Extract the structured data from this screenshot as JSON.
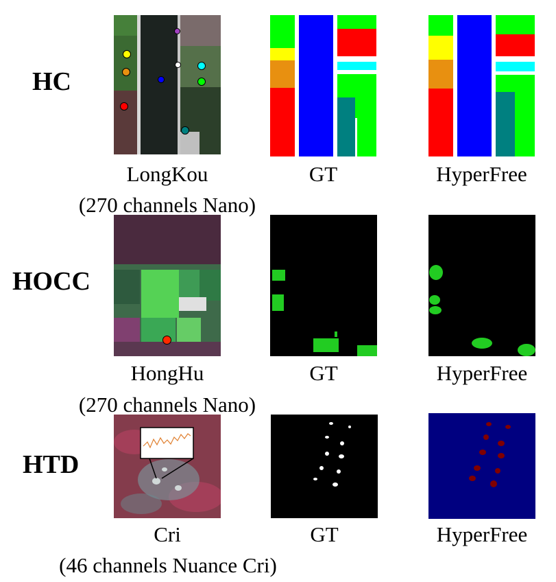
{
  "rows": [
    {
      "task": "HC",
      "dataset": "LongKou",
      "sensor_note": "(270 channels Nano)",
      "gt_label": "GT",
      "pred_label": "HyperFree"
    },
    {
      "task": "HOCC",
      "dataset": "HongHu",
      "sensor_note": "(270 channels Nano)",
      "gt_label": "GT",
      "pred_label": "HyperFree"
    },
    {
      "task": "HTD",
      "dataset": "Cri",
      "sensor_note": "(46 channels Nuance Cri)",
      "gt_label": "GT",
      "pred_label": "HyperFree"
    }
  ],
  "colors": {
    "class_green": "#00ff00",
    "class_blue": "#0000ff",
    "class_red": "#ff0000",
    "class_yellow": "#ffff00",
    "class_orange": "#e89010",
    "class_cyan": "#00ffff",
    "class_teal": "#008080",
    "detection_bg": "#000080",
    "detection_target": "#800000",
    "occ_target": "#22cc22"
  }
}
